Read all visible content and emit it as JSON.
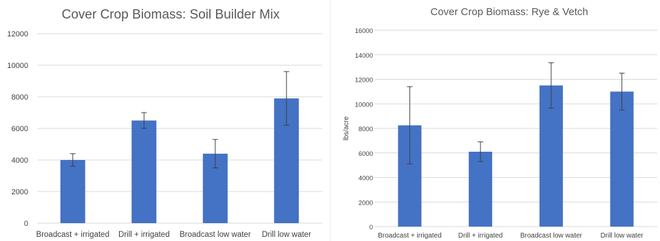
{
  "colors": {
    "bar": "#4472c4",
    "grid": "#d9d9d9",
    "error": "#404040"
  },
  "chart_data": [
    {
      "type": "bar",
      "title": "Cover Crop Biomass: Soil Builder Mix",
      "xlabel": "",
      "ylabel": "",
      "categories": [
        "Broadcast + irrigated",
        "Drill + irrigated",
        "Broadcast low water",
        "Drill low water"
      ],
      "values": [
        4000,
        6500,
        4400,
        7900
      ],
      "error": [
        400,
        500,
        900,
        1700
      ],
      "ylim": [
        0,
        12000
      ],
      "yticks": [
        "0",
        "2000",
        "4000",
        "6000",
        "8000",
        "10000",
        "12000"
      ],
      "grid": true,
      "legend": "none"
    },
    {
      "type": "bar",
      "title": "Cover Crop Biomass: Rye & Vetch",
      "xlabel": "",
      "ylabel": "lbs/acre",
      "categories": [
        "Broadcast + irrigated",
        "Drill + irrigated",
        "Broadcast low water",
        "Drill low water"
      ],
      "values": [
        8250,
        6100,
        11500,
        11000
      ],
      "error": [
        3150,
        800,
        1850,
        1500
      ],
      "ylim": [
        0,
        16000
      ],
      "yticks": [
        "0",
        "2000",
        "4000",
        "6000",
        "8000",
        "10000",
        "12000",
        "14000",
        "16000"
      ],
      "grid": true,
      "legend": "none"
    }
  ]
}
